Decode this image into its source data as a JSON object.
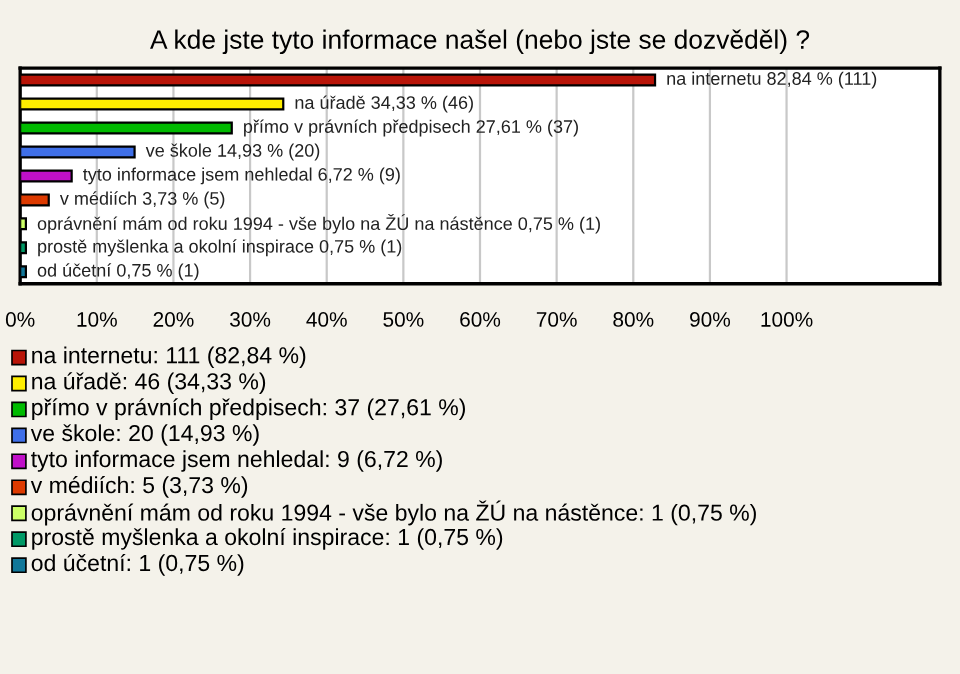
{
  "chart_data": {
    "type": "bar",
    "orientation": "horizontal",
    "title": "A kde jste tyto informace našel (nebo jste se dozvěděl) ?",
    "categories": [
      null,
      null,
      null,
      null,
      null,
      null,
      null,
      null,
      null
    ],
    "values": [
      82.84,
      34.33,
      27.61,
      14.93,
      6.72,
      3.73,
      0.75,
      0.75,
      0.75
    ],
    "value_labels": [
      "na internetu 82,84 % (111)",
      "na úřadě 34,33 % (46)",
      "přímo v právních předpisech 27,61 % (37)",
      "ve škole 14,93 % (20)",
      "tyto informace jsem nehledal 6,72 % (9)",
      "v médiích 3,73 % (5)",
      "oprávnění mám od roku 1994 - vše bylo na ŽÚ na nástěnce 0,75 % (1)",
      "prostě myšlenka a okolní inspirace 0,75 % (1)",
      "od účetní 0,75 % (1)"
    ],
    "colors": [
      "#b81408",
      "#ffee00",
      "#00bb00",
      "#3f6fe8",
      "#c010c8",
      "#dd3a00",
      "#ccff66",
      "#009966",
      "#117799"
    ],
    "annotations": [
      "na internetu: 111 (82,84 %)",
      "na úřadě: 46 (34,33 %)",
      "přímo v právních předpisech: 37 (27,61 %)",
      "ve škole: 20 (14,93 %)",
      "tyto informace jsem nehledal: 9 (6,72 %)",
      "v médiích: 5 (3,73 %)",
      "oprávnění mám od roku 1994 - vše bylo na ŽÚ na nástěnce: 1 (0,75 %)",
      "prostě myšlenka a okolní inspirace: 1 (0,75 %)",
      "od účetní: 1 (0,75 %)"
    ],
    "xlim": [
      0,
      120
    ],
    "xticks": [
      {
        "value": 0,
        "label": "0%"
      },
      {
        "value": 10,
        "label": "10%"
      },
      {
        "value": 20,
        "label": "20%"
      },
      {
        "value": 30,
        "label": "30%"
      },
      {
        "value": 40,
        "label": "40%"
      },
      {
        "value": 50,
        "label": "50%"
      },
      {
        "value": 60,
        "label": "60%"
      },
      {
        "value": 70,
        "label": "70%"
      },
      {
        "value": 80,
        "label": "80%"
      },
      {
        "value": 90,
        "label": "90%"
      },
      {
        "value": 100,
        "label": "100%"
      }
    ],
    "grid": "x",
    "tick_labels": "x"
  }
}
